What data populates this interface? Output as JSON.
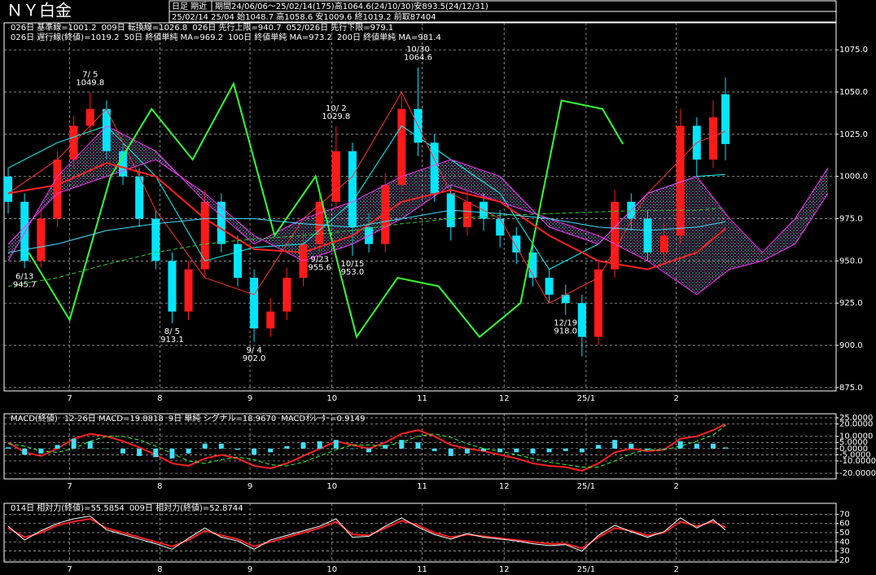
{
  "header": {
    "title": "ＮＹ白金",
    "mode": "日足 期近",
    "period": "期間24/06/06～25/02/14(175)高1064.6(24/10/30)安893.5(24/12/31)",
    "last": "25/02/14 25/04 始1048.7 高1058.6 安1009.6 終1019.2 前取87404"
  },
  "chart_data": [
    {
      "type": "candlestick",
      "up_color": "#ff1a1a",
      "down_color": "#00e5ff",
      "x": [
        0,
        4,
        8,
        12,
        16,
        20,
        24,
        28,
        32,
        36,
        40,
        44,
        48,
        52,
        56,
        60,
        64,
        68,
        72,
        76,
        80,
        84,
        88,
        92,
        96,
        100,
        104,
        108,
        112,
        116,
        120,
        124,
        128,
        132,
        136,
        140,
        144,
        148,
        152,
        156,
        160,
        164,
        168,
        172,
        175
      ],
      "open": [
        1000,
        985,
        950,
        975,
        1010,
        1030,
        1040,
        1015,
        1000,
        975,
        950,
        920,
        945,
        985,
        960,
        940,
        910,
        920,
        940,
        960,
        985,
        1015,
        970,
        960,
        995,
        1040,
        1020,
        990,
        970,
        985,
        975,
        965,
        955,
        940,
        930,
        925,
        905,
        945,
        985,
        975,
        955,
        965,
        1030,
        1010,
        1048.7
      ],
      "high": [
        1005,
        990,
        980,
        1015,
        1036,
        1049.8,
        1045,
        1020,
        1005,
        980,
        955,
        950,
        992,
        990,
        965,
        945,
        928,
        946,
        968,
        990,
        1029.8,
        1020,
        978,
        1002,
        1048,
        1064.6,
        1025,
        995,
        992,
        990,
        980,
        970,
        960,
        945,
        936,
        930,
        950,
        992,
        990,
        980,
        972,
        1040,
        1035,
        1045,
        1058.6
      ],
      "low": [
        978,
        945.7,
        946,
        970,
        1005,
        1025,
        1010,
        995,
        970,
        945,
        913.1,
        915,
        940,
        955,
        935,
        902,
        905,
        915,
        935,
        955.6,
        980,
        953,
        955,
        955,
        990,
        1012,
        985,
        962,
        965,
        968,
        958,
        948,
        935,
        925,
        918,
        893.5,
        900,
        940,
        968,
        950,
        950,
        960,
        1000,
        1005,
        1009.6
      ],
      "close": [
        985,
        950,
        975,
        1010,
        1030,
        1040,
        1015,
        1000,
        975,
        950,
        920,
        945,
        985,
        960,
        940,
        910,
        920,
        940,
        960,
        985,
        1015,
        970,
        960,
        995,
        1040,
        1020,
        990,
        970,
        985,
        975,
        965,
        955,
        940,
        930,
        925,
        905,
        945,
        985,
        975,
        955,
        965,
        1030,
        1010,
        1035,
        1019.2
      ],
      "series": [
        {
          "name": "026日 基準線=1001.2",
          "color": "#00ffff",
          "width": 1,
          "x": [
            0,
            12,
            24,
            36,
            48,
            60,
            72,
            84,
            96,
            108,
            120,
            132,
            144,
            156,
            168,
            175
          ],
          "values": [
            1005,
            1020,
            1030,
            1000,
            950,
            958,
            960,
            985,
            1030,
            1010,
            990,
            945,
            960,
            990,
            1000,
            1001.2
          ]
        },
        {
          "name": "009日 転換線=1026.8",
          "color": "#ff3030",
          "width": 1,
          "x": [
            0,
            12,
            24,
            36,
            48,
            60,
            72,
            84,
            96,
            108,
            120,
            132,
            144,
            156,
            168,
            175
          ],
          "values": [
            990,
            1010,
            1040,
            980,
            940,
            930,
            975,
            1000,
            1050,
            990,
            975,
            925,
            940,
            990,
            1020,
            1026.8
          ]
        },
        {
          "name": "026日 先行上限=940.7",
          "color": "#ff33ff",
          "width": 1,
          "style": "cloud",
          "x": [
            0,
            12,
            24,
            36,
            48,
            60,
            72,
            84,
            96,
            108,
            120,
            132,
            144,
            156,
            168,
            176,
            184,
            192,
            200
          ],
          "values": [
            950,
            1000,
            1030,
            1015,
            985,
            960,
            975,
            985,
            1000,
            1010,
            1000,
            970,
            960,
            990,
            1000,
            975,
            955,
            975,
            1005
          ]
        },
        {
          "name": "052/026日 先行下限=979.1",
          "color": "#ff33ff",
          "width": 1,
          "style": "cloud",
          "x": [
            0,
            12,
            24,
            36,
            48,
            60,
            72,
            84,
            96,
            108,
            120,
            132,
            144,
            156,
            168,
            176,
            184,
            192,
            200
          ],
          "values": [
            960,
            990,
            1000,
            1010,
            990,
            965,
            950,
            960,
            975,
            995,
            985,
            975,
            965,
            950,
            930,
            945,
            950,
            960,
            990
          ]
        },
        {
          "name": "026日 遅行線(終値)=1019.2",
          "color": "#33ff33",
          "width": 2,
          "x": [
            5,
            15,
            25,
            35,
            45,
            55,
            65,
            75,
            85,
            95,
            105,
            115,
            125,
            135,
            145,
            150
          ],
          "values": [
            955,
            915,
            1000,
            1040,
            1010,
            1055,
            965,
            1000,
            905,
            940,
            935,
            905,
            925,
            1045,
            1040,
            1019.2
          ]
        },
        {
          "name": "50日 終値単純 MA=969.2",
          "color": "#ff2020",
          "width": 2,
          "x": [
            0,
            12,
            24,
            36,
            48,
            60,
            72,
            84,
            96,
            108,
            120,
            132,
            144,
            156,
            168,
            175
          ],
          "values": [
            990,
            995,
            1008,
            1000,
            975,
            957,
            955,
            965,
            985,
            992,
            985,
            965,
            950,
            945,
            955,
            969.2
          ]
        },
        {
          "name": "100日 終値単純 MA=973.2",
          "color": "#40e0ff",
          "width": 1,
          "x": [
            0,
            12,
            24,
            36,
            48,
            60,
            72,
            84,
            96,
            108,
            120,
            132,
            144,
            156,
            168,
            175
          ],
          "values": [
            955,
            960,
            968,
            972,
            975,
            975,
            972,
            970,
            975,
            980,
            978,
            975,
            970,
            968,
            970,
            973.2
          ]
        },
        {
          "name": "200日 終値単純 MA=981.4",
          "color": "#33cc33",
          "width": 1,
          "dash": true,
          "x": [
            0,
            12,
            24,
            36,
            48,
            60,
            72,
            84,
            96,
            108,
            120,
            132,
            144,
            156,
            168,
            175
          ],
          "values": [
            935,
            940,
            948,
            955,
            960,
            963,
            965,
            968,
            972,
            975,
            977,
            978,
            979,
            980,
            980,
            981.4
          ]
        }
      ],
      "annotations": [
        {
          "date": "6/13",
          "price": "945.7"
        },
        {
          "date": "7/ 5",
          "price": "1049.8"
        },
        {
          "date": "8/ 5",
          "price": "913.1"
        },
        {
          "date": "9/ 4",
          "price": "902.0"
        },
        {
          "date": "9/23",
          "price": "955.6"
        },
        {
          "date": "10/ 2",
          "price": "1029.8"
        },
        {
          "date": "10/15",
          "price": "953.0"
        },
        {
          "date": "10/30",
          "price": "1064.6"
        },
        {
          "date": "12/19",
          "price": "918.0"
        }
      ],
      "xlim": [
        -1,
        202
      ],
      "ylim": [
        873,
        1091
      ],
      "xticks": [
        {
          "value": 15,
          "label": "7"
        },
        {
          "value": 37,
          "label": "8"
        },
        {
          "value": 59,
          "label": "9"
        },
        {
          "value": 79,
          "label": "10"
        },
        {
          "value": 101,
          "label": "11"
        },
        {
          "value": 121,
          "label": "12"
        },
        {
          "value": 141,
          "label": "25/1"
        },
        {
          "value": 163,
          "label": "2"
        }
      ],
      "yticks": [
        {
          "value": 1075,
          "label": "1075.0"
        },
        {
          "value": 1050,
          "label": "1050.0"
        },
        {
          "value": 1025,
          "label": "1025.0"
        },
        {
          "value": 1000,
          "label": "1000.0"
        },
        {
          "value": 975,
          "label": "975.0"
        },
        {
          "value": 950,
          "label": "950.0"
        },
        {
          "value": 925,
          "label": "925.0"
        },
        {
          "value": 900,
          "label": "900.0"
        },
        {
          "value": 875,
          "label": "875.0"
        }
      ],
      "grid": true
    },
    {
      "type": "line",
      "title": "MACD(終値)",
      "x": [
        0,
        4,
        8,
        12,
        16,
        20,
        24,
        28,
        32,
        36,
        40,
        44,
        48,
        52,
        56,
        60,
        64,
        68,
        72,
        76,
        80,
        84,
        88,
        92,
        96,
        100,
        104,
        108,
        112,
        116,
        120,
        124,
        128,
        132,
        136,
        140,
        144,
        148,
        152,
        156,
        160,
        164,
        168,
        172,
        175
      ],
      "series": [
        {
          "name": "12-26日 MACD=19.8818",
          "color": "#ff2020",
          "width": 2,
          "values": [
            5,
            -3,
            -6,
            0,
            8,
            12,
            10,
            6,
            1,
            -5,
            -12,
            -14,
            -8,
            -5,
            -8,
            -14,
            -16,
            -12,
            -6,
            0,
            6,
            3,
            0,
            5,
            12,
            15,
            10,
            3,
            0,
            -2,
            -5,
            -8,
            -12,
            -14,
            -15,
            -18,
            -12,
            -3,
            0,
            -2,
            -1,
            8,
            10,
            15,
            19.8818
          ]
        },
        {
          "name": "9日 単純 シグナル=18.9670",
          "color": "#33ff33",
          "width": 1,
          "dash": true,
          "values": [
            4,
            2,
            -2,
            -3,
            0,
            6,
            10,
            10,
            7,
            2,
            -4,
            -10,
            -12,
            -9,
            -7,
            -9,
            -13,
            -14,
            -11,
            -6,
            -1,
            3,
            3,
            2,
            5,
            10,
            12,
            9,
            4,
            0,
            -2,
            -5,
            -8,
            -11,
            -13,
            -15,
            -15,
            -10,
            -4,
            -1,
            -1,
            2,
            6,
            11,
            18.967
          ]
        },
        {
          "name": "MACDｵｼﾚｰﾀｰ=0.9149",
          "color": "#40e0ff",
          "style": "bar",
          "values": [
            1,
            -5,
            -4,
            3,
            8,
            6,
            0,
            -4,
            -6,
            -7,
            -8,
            -4,
            4,
            4,
            -1,
            -5,
            -3,
            2,
            5,
            6,
            7,
            0,
            -3,
            3,
            7,
            5,
            -2,
            -6,
            -4,
            -2,
            -3,
            -3,
            -4,
            -3,
            -2,
            -3,
            3,
            7,
            4,
            -1,
            0,
            6,
            4,
            4,
            0.9149
          ]
        }
      ],
      "xlim": [
        -1,
        202
      ],
      "ylim": [
        -24.6,
        28.3
      ],
      "xticks": [
        {
          "value": 15,
          "label": "7"
        },
        {
          "value": 37,
          "label": "8"
        },
        {
          "value": 59,
          "label": "9"
        },
        {
          "value": 79,
          "label": "10"
        },
        {
          "value": 101,
          "label": "11"
        },
        {
          "value": 121,
          "label": "12"
        },
        {
          "value": 141,
          "label": "25/1"
        },
        {
          "value": 163,
          "label": "2"
        }
      ],
      "yticks": [
        {
          "value": 25,
          "label": "25.0000"
        },
        {
          "value": 20,
          "label": "20.0000"
        },
        {
          "value": 10,
          "label": "10.0000"
        },
        {
          "value": 5,
          "label": "5.0000"
        },
        {
          "value": 0,
          "label": "0.0000"
        },
        {
          "value": -5,
          "label": "-5.0000"
        },
        {
          "value": -10,
          "label": "-10.0000"
        },
        {
          "value": -20,
          "label": "-20.0000"
        }
      ],
      "grid": true
    },
    {
      "type": "line",
      "x": [
        0,
        4,
        8,
        12,
        16,
        20,
        24,
        28,
        32,
        36,
        40,
        44,
        48,
        52,
        56,
        60,
        64,
        68,
        72,
        76,
        80,
        84,
        88,
        92,
        96,
        100,
        104,
        108,
        112,
        116,
        120,
        124,
        128,
        132,
        136,
        140,
        144,
        148,
        152,
        156,
        160,
        164,
        168,
        172,
        175
      ],
      "series": [
        {
          "name": "014日 相対力(終値)=55.5854",
          "color": "#ff2020",
          "width": 2,
          "values": [
            55,
            45,
            50,
            58,
            62,
            65,
            55,
            50,
            45,
            40,
            35,
            42,
            52,
            47,
            43,
            35,
            40,
            45,
            50,
            55,
            62,
            48,
            47,
            55,
            63,
            58,
            50,
            45,
            48,
            46,
            44,
            42,
            40,
            38,
            38,
            33,
            45,
            55,
            52,
            47,
            50,
            62,
            57,
            62,
            55.5854
          ]
        },
        {
          "name": "009日 相対力(終値)=52.8744",
          "color": "#ffffff",
          "width": 1,
          "values": [
            57,
            42,
            52,
            60,
            65,
            68,
            53,
            48,
            43,
            38,
            32,
            44,
            55,
            45,
            41,
            32,
            42,
            47,
            52,
            57,
            65,
            45,
            46,
            57,
            66,
            56,
            48,
            43,
            49,
            45,
            43,
            41,
            38,
            36,
            37,
            30,
            47,
            58,
            51,
            45,
            51,
            66,
            55,
            64,
            52.8744
          ]
        }
      ],
      "xlim": [
        -1,
        202
      ],
      "ylim": [
        18.2,
        81.8
      ],
      "xticks": [
        {
          "value": 15,
          "label": "7"
        },
        {
          "value": 37,
          "label": "8"
        },
        {
          "value": 59,
          "label": "9"
        },
        {
          "value": 79,
          "label": "10"
        },
        {
          "value": 101,
          "label": "11"
        },
        {
          "value": 121,
          "label": "12"
        },
        {
          "value": 141,
          "label": "25/1"
        },
        {
          "value": 163,
          "label": "2"
        }
      ],
      "yticks": [
        70,
        60,
        50,
        40,
        30,
        20
      ],
      "grid": true
    }
  ]
}
